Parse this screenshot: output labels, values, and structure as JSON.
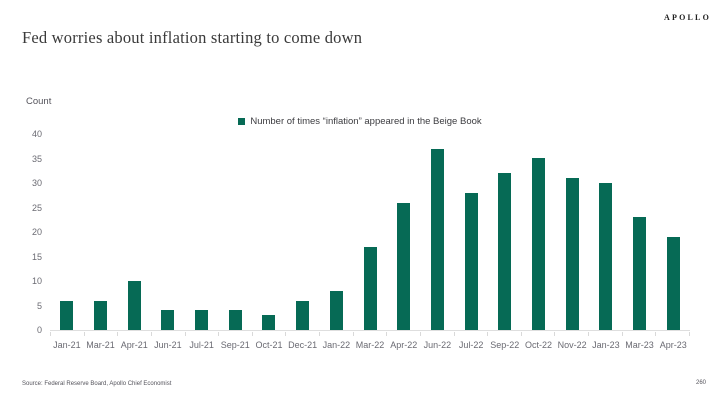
{
  "header": {
    "logo": "APOLLO",
    "title": "Fed worries about inflation starting to come down"
  },
  "chart_data": {
    "type": "bar",
    "title": "Fed worries about inflation starting to come down",
    "ylabel": "Count",
    "xlabel": "",
    "legend_entries": [
      "Number of times “inflation” appeared in the Beige Book"
    ],
    "legend_position": "top-center",
    "categories": [
      "Jan-21",
      "Mar-21",
      "Apr-21",
      "Jun-21",
      "Jul-21",
      "Sep-21",
      "Oct-21",
      "Dec-21",
      "Jan-22",
      "Mar-22",
      "Apr-22",
      "Jun-22",
      "Jul-22",
      "Sep-22",
      "Oct-22",
      "Nov-22",
      "Jan-23",
      "Mar-23",
      "Apr-23"
    ],
    "values": [
      6,
      6,
      10,
      4,
      4,
      4,
      3,
      6,
      8,
      17,
      26,
      37,
      28,
      32,
      35,
      31,
      30,
      23,
      19
    ],
    "ylim": [
      0,
      40
    ],
    "yticks": [
      0,
      5,
      10,
      15,
      20,
      25,
      30,
      35,
      40
    ],
    "grid": false,
    "bar_color": "#066a55"
  },
  "footer": {
    "source": "Source: Federal Reserve Board, Apollo Chief Economist",
    "page_number": "260"
  }
}
